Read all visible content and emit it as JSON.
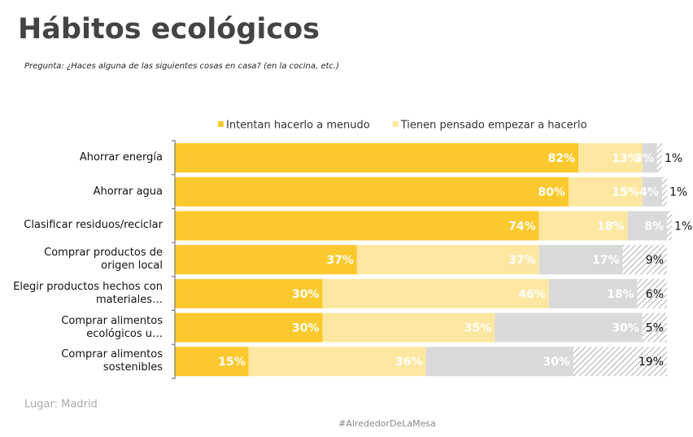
{
  "chart_data": {
    "type": "stacked-bar-horizontal",
    "title": "Hábitos ecológicos",
    "subtitle": "Pregunta: ¿Haces alguna de las siguientes cosas en casa? (en la cocina, etc.)",
    "source": "Lugar: Madrid",
    "footer": "#AlrededorDeLaMesa",
    "categories": [
      "Ahorrar energía",
      "Ahorrar agua",
      "Clasificar residuos/reciclar",
      "Comprar productos de\norigen local",
      "Elegir productos hechos con\nmateriales…",
      "Comprar alimentos\necológicos u…",
      "Comprar alimentos\nsostenibles"
    ],
    "xlim": [
      0,
      100
    ],
    "series": [
      {
        "name": "Intentan hacerlo a menudo",
        "color": "#fbc92e",
        "label_color": "#ffffff",
        "values": [
          82,
          80,
          74,
          37,
          30,
          30,
          15
        ],
        "value_labels": [
          "82%",
          "80%",
          "74%",
          "37%",
          "30%",
          "30%",
          "15%"
        ]
      },
      {
        "name": "Tienen pensado empezar a hacerlo",
        "color": "#fde7a0",
        "label_color": "#ffffff",
        "values": [
          13,
          15,
          18,
          37,
          46,
          35,
          36
        ],
        "value_labels": [
          "13%",
          "15%",
          "18%",
          "37%",
          "46%",
          "35%",
          "36%"
        ]
      },
      {
        "color": "#d9d9d9",
        "label_color": "#ffffff",
        "values": [
          3,
          4,
          8,
          17,
          18,
          30,
          30
        ],
        "value_labels": [
          "3%",
          "4%",
          "8%",
          "17%",
          "18%",
          "30%",
          "30%"
        ]
      },
      {
        "color": "#9a9a9a",
        "hatch": true,
        "label_color": "#111111",
        "values": [
          1,
          1,
          1,
          9,
          6,
          5,
          19
        ],
        "value_labels": [
          "1%",
          "1%",
          "1%",
          "9%",
          "6%",
          "5%",
          "19%"
        ]
      }
    ]
  }
}
